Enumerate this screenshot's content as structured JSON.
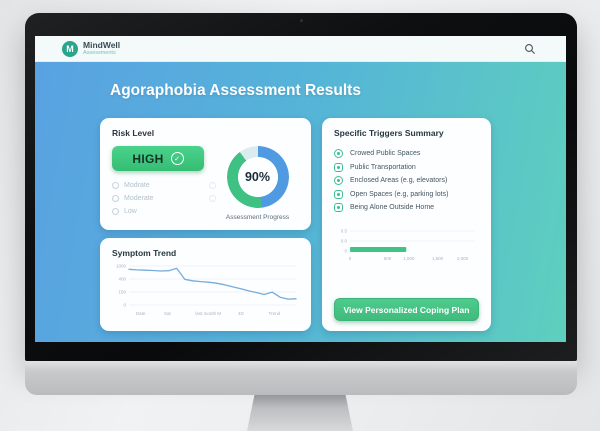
{
  "header": {
    "brand": "MindWell",
    "brand_sub": "Assessments",
    "logo_letter": "M",
    "search_icon": "magnifier"
  },
  "hero": {
    "title": "Agoraphobia Assessment Results"
  },
  "risk": {
    "title": "Risk Level",
    "selected": "HIGH",
    "check_glyph": "✓",
    "options": [
      {
        "label": "Modrate"
      },
      {
        "label": "Moderate"
      },
      {
        "label": "Low"
      }
    ],
    "progress_value": "90%",
    "progress_caption": "Assessment Progress"
  },
  "trend": {
    "title": "Symptom Trend"
  },
  "triggers": {
    "title": "Specific Triggers Summary",
    "items": [
      {
        "icon": "crowd-icon",
        "label": "Crowed Public Spaces"
      },
      {
        "icon": "bus-icon",
        "label": "Public Transportation"
      },
      {
        "icon": "elevator-icon",
        "label": "Enclosed Areas (e.g, elevators)"
      },
      {
        "icon": "parking-icon",
        "label": "Open Spaces (e.g, parking lots)"
      },
      {
        "icon": "home-icon",
        "label": "Being Alone Outside Home"
      }
    ],
    "cta_label": "View Personalized Coping Plan"
  },
  "colors": {
    "accent_green": "#3ec483",
    "accent_blue": "#4f9ae0",
    "page_gradient_left": "#59a2e2",
    "page_gradient_right": "#5ecfbe",
    "line_color": "#79abdd",
    "bar_color": "#3ec483"
  },
  "chart_data": [
    {
      "type": "line",
      "title": "Symptom Trend",
      "x_ticks": [
        "Date",
        "Sat",
        "last month",
        "M",
        "4D",
        "Trend"
      ],
      "x_tick_pos": [
        0.07,
        0.23,
        0.46,
        0.54,
        0.67,
        0.87
      ],
      "y_ticks": [
        "1000",
        "400",
        "150",
        "0"
      ],
      "ymax": 1000,
      "ylim": [
        0,
        1000
      ],
      "values": [
        915,
        900,
        892,
        885,
        872,
        880,
        940,
        660,
        620,
        600,
        585,
        560,
        520,
        470,
        420,
        365,
        320,
        270,
        330,
        200,
        150,
        160
      ],
      "grid": true,
      "legend": false
    },
    {
      "type": "bar",
      "title": "",
      "orientation": "horizontal",
      "categories": [
        ""
      ],
      "values": [
        900
      ],
      "xlim": [
        0,
        2000
      ],
      "x_ticks": [
        "0",
        "500",
        "1,000",
        "1,500",
        "2,000"
      ],
      "x_tick_pos": [
        0.0,
        0.3,
        0.47,
        0.7,
        0.9
      ],
      "y_ticks": [
        "0.5",
        "0.0",
        "0"
      ],
      "grid": true,
      "legend": false
    }
  ]
}
